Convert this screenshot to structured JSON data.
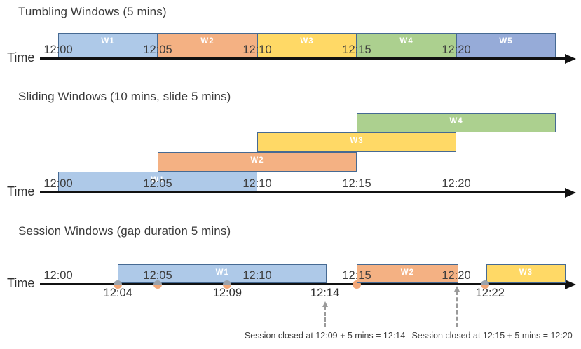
{
  "colors": {
    "window_border": "#466a93",
    "axis": "#111111",
    "title_text": "#3a3a3a",
    "tick_text": "#3d3d3d",
    "window_label_text": "#ffffff",
    "event_dot_fill": "#f2a778",
    "event_dot_shaded_top": "#9aa2ac",
    "annotation_arrow": "#9a9a9a",
    "blue_light": "#aec9e8",
    "orange": "#f4b183",
    "yellow": "#ffd966",
    "green": "#acd08f",
    "blue_medium": "#96abd8"
  },
  "sections": {
    "tumbling": {
      "title": "Tumbling Windows (5 mins)",
      "time_label": "Time",
      "ticks": [
        {
          "label": "12:00",
          "min": 0
        },
        {
          "label": "12:05",
          "min": 5
        },
        {
          "label": "12:10",
          "min": 10
        },
        {
          "label": "12:15",
          "min": 15
        },
        {
          "label": "12:20",
          "min": 20
        }
      ],
      "windows": [
        {
          "label": "W1",
          "start_min": 0,
          "end_min": 5,
          "fill": "#aec9e8"
        },
        {
          "label": "W2",
          "start_min": 5,
          "end_min": 10,
          "fill": "#f4b183"
        },
        {
          "label": "W3",
          "start_min": 10,
          "end_min": 15,
          "fill": "#ffd966"
        },
        {
          "label": "W4",
          "start_min": 15,
          "end_min": 20,
          "fill": "#acd08f"
        },
        {
          "label": "W5",
          "start_min": 20,
          "end_min": 25,
          "fill": "#96abd8"
        }
      ]
    },
    "sliding": {
      "title": "Sliding Windows (10 mins, slide 5 mins)",
      "time_label": "Time",
      "ticks": [
        {
          "label": "12:00",
          "min": 0
        },
        {
          "label": "12:05",
          "min": 5
        },
        {
          "label": "12:10",
          "min": 10
        },
        {
          "label": "12:15",
          "min": 15
        },
        {
          "label": "12:20",
          "min": 20
        }
      ],
      "windows": [
        {
          "label": "W1",
          "start_min": 0,
          "end_min": 10,
          "fill": "#aec9e8",
          "row": 0
        },
        {
          "label": "W2",
          "start_min": 5,
          "end_min": 15,
          "fill": "#f4b183",
          "row": 1
        },
        {
          "label": "W3",
          "start_min": 10,
          "end_min": 20,
          "fill": "#ffd966",
          "row": 2
        },
        {
          "label": "W4",
          "start_min": 15,
          "end_min": 25,
          "fill": "#acd08f",
          "row": 3
        }
      ]
    },
    "session": {
      "title": "Session Windows (gap duration 5 mins)",
      "time_label": "Time",
      "ticks": [
        {
          "label": "12:00",
          "min": 0
        },
        {
          "label": "12:05",
          "min": 5
        },
        {
          "label": "12:10",
          "min": 10
        },
        {
          "label": "12:15",
          "min": 15
        },
        {
          "label": "12:20",
          "min": 20
        }
      ],
      "windows": [
        {
          "label": "W1",
          "start_min": 3,
          "end_min": 13.5,
          "fill": "#aec9e8"
        },
        {
          "label": "W2",
          "start_min": 15,
          "end_min": 20.1,
          "fill": "#f4b183"
        },
        {
          "label": "W3",
          "start_min": 21.5,
          "end_min": 25.5,
          "fill": "#ffd966"
        }
      ],
      "events": [
        {
          "min": 3,
          "style": "two-tone"
        },
        {
          "min": 5,
          "style": "two-tone"
        },
        {
          "min": 8.5,
          "style": "two-tone"
        },
        {
          "min": 15,
          "style": "plain"
        },
        {
          "min": 21.45,
          "style": "two-tone"
        }
      ],
      "event_labels": [
        {
          "label": "12:04",
          "min": 3
        },
        {
          "label": "12:09",
          "min": 8.5
        },
        {
          "label": "12:14",
          "min": 13.4
        },
        {
          "label": "12:22",
          "min": 21.7
        }
      ],
      "annotations": [
        {
          "text": "Session closed at 12:09 + 5 mins = 12:14",
          "arrow_min": 13.42,
          "text_center_min": 13.4
        },
        {
          "text": "Session closed at 12:15 + 5 mins = 12:20",
          "arrow_min": 20.05,
          "text_center_min": 21.8
        }
      ]
    }
  }
}
